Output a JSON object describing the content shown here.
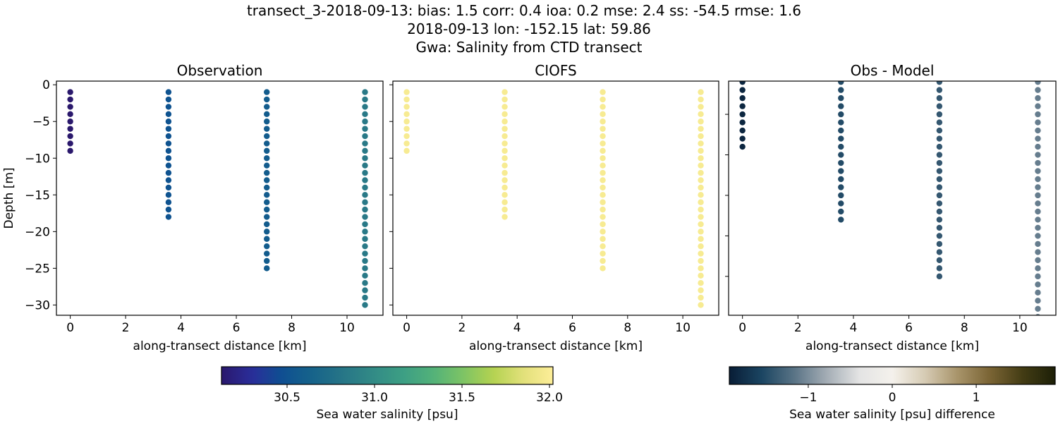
{
  "title_lines": [
    "transect_3-2018-09-13: bias: 1.5  corr: 0.4  ioa: 0.2  mse: 2.4  ss: -54.5  rmse: 1.6",
    "2018-09-13 lon: -152.15 lat: 59.86",
    "Gwa: Salinity from CTD transect"
  ],
  "chart_data": [
    {
      "type": "scatter",
      "title": "Observation",
      "xlabel": "along-transect distance [km]",
      "ylabel": "Depth [m]",
      "xlim": [
        -0.5,
        11.3
      ],
      "ylim": [
        -31.4,
        0.5
      ],
      "xticks": [
        0,
        2,
        4,
        6,
        8,
        10
      ],
      "yticks": [
        0,
        -5,
        -10,
        -15,
        -20,
        -25,
        -30
      ],
      "colormap": "haline",
      "profiles": [
        {
          "x": 0,
          "depth_max": 9,
          "value": 30.12
        },
        {
          "x": 3.55,
          "depth_max": 18,
          "value": 30.5
        },
        {
          "x": 7.1,
          "depth_max": 25,
          "value": 30.58
        },
        {
          "x": 10.65,
          "depth_max": 30,
          "value": 30.85
        }
      ]
    },
    {
      "type": "scatter",
      "title": "CIOFS",
      "xlabel": "along-transect distance [km]",
      "xlim": [
        -0.5,
        11.3
      ],
      "ylim": [
        -31.4,
        0.5
      ],
      "xticks": [
        0,
        2,
        4,
        6,
        8,
        10
      ],
      "colormap": "haline",
      "profiles": [
        {
          "x": 0,
          "depth_max": 9,
          "value": 31.98
        },
        {
          "x": 3.55,
          "depth_max": 18,
          "value": 31.98
        },
        {
          "x": 7.1,
          "depth_max": 25,
          "value": 31.98
        },
        {
          "x": 10.65,
          "depth_max": 30,
          "value": 31.98
        }
      ]
    },
    {
      "type": "scatter",
      "title": "Obs - Model",
      "xlabel": "along-transect distance [km]",
      "xlim": [
        -0.5,
        11.3
      ],
      "ylim": [
        -29.8,
        -0.9
      ],
      "xticks": [
        0,
        2,
        4,
        6,
        8,
        10
      ],
      "yticks": [
        -5,
        -10,
        -15,
        -20,
        -25
      ],
      "colormap": "diff",
      "profiles": [
        {
          "x": 0,
          "depth_max": 9,
          "value": -1.85
        },
        {
          "x": 3.55,
          "depth_max": 18,
          "value": -1.5
        },
        {
          "x": 7.1,
          "depth_max": 25,
          "value": -1.4
        },
        {
          "x": 10.65,
          "depth_max": 30,
          "value": -1.1
        }
      ]
    }
  ],
  "colorbars": [
    {
      "label": "Sea water salinity [psu]",
      "range": [
        30.125,
        32.02
      ],
      "ticks": [
        30.5,
        31.0,
        31.5,
        32.0
      ],
      "tick_labels": [
        "30.5",
        "31.0",
        "31.5",
        "32.0"
      ],
      "colormap": "haline"
    },
    {
      "label": "Sea water salinity [psu] difference",
      "range": [
        -1.94,
        1.94
      ],
      "ticks": [
        -1,
        0,
        1
      ],
      "tick_labels": [
        "−1",
        "0",
        "1"
      ],
      "colormap": "diff"
    }
  ],
  "colormaps": {
    "haline": [
      "#2a186c",
      "#2a2d9a",
      "#0e4f91",
      "#16638a",
      "#267587",
      "#328a86",
      "#3c9e84",
      "#52b17a",
      "#7cc365",
      "#b3d250",
      "#e2e07a",
      "#fdee99"
    ],
    "diff": [
      "#081d36",
      "#1b4562",
      "#5a7486",
      "#a4adb5",
      "#e4e4e4",
      "#f4f1ec",
      "#d6cbb4",
      "#a8946a",
      "#7a6434",
      "#433c14",
      "#1c1f07"
    ]
  }
}
